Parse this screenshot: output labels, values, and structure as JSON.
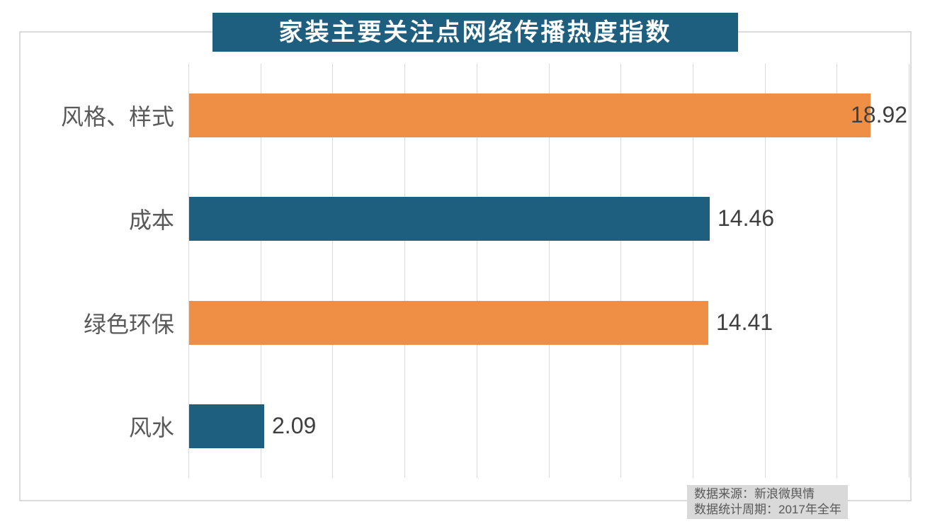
{
  "title": "家装主要关注点网络传播热度指数",
  "chart_data": {
    "type": "bar",
    "orientation": "horizontal",
    "title": "家装主要关注点网络传播热度指数",
    "categories": [
      "风格、样式",
      "成本",
      "绿色环保",
      "风水"
    ],
    "values": [
      18.92,
      14.46,
      14.41,
      2.09
    ],
    "value_labels": [
      "18.92",
      "14.46",
      "14.41",
      "2.09"
    ],
    "bar_colors": [
      "#EF8F46",
      "#1E5F80",
      "#EF8F46",
      "#1E5F80"
    ],
    "xlim": [
      0,
      20
    ],
    "grid_step": 2,
    "grid": true,
    "legend": false,
    "xlabel": "",
    "ylabel": ""
  },
  "source_note": {
    "line1": "数据来源：新浪微舆情",
    "line2": "数据统计周期：2017年全年"
  },
  "colors": {
    "teal": "#1E5F80",
    "orange": "#EF8F46",
    "grid": "#D9D9D9",
    "border": "#DBDBDB",
    "note_bg": "#D9D9D9",
    "note_text": "#595959",
    "category_text": "#595959",
    "value_text": "#3F3F3F",
    "title_bg": "#1E5F80",
    "title_text": "#FFFFFF"
  }
}
